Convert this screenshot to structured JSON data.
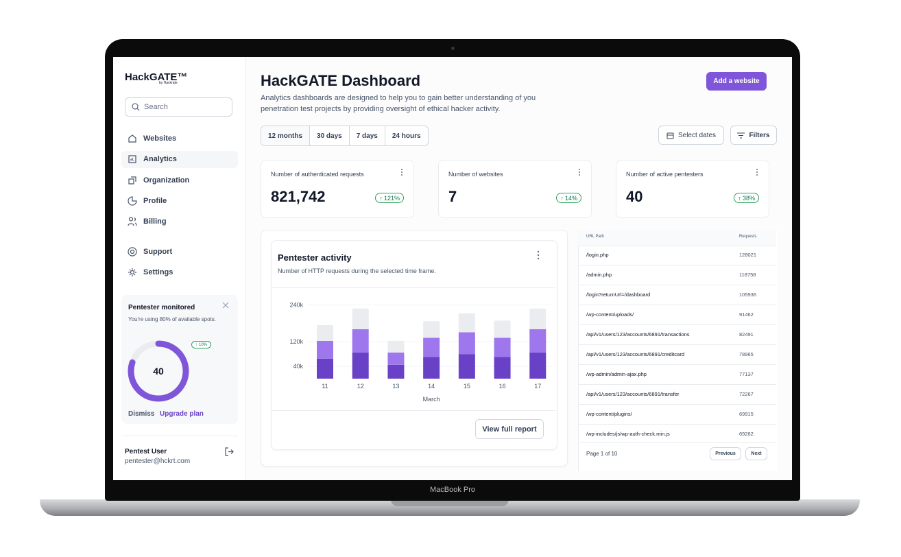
{
  "device_label": "MacBook Pro",
  "sidebar": {
    "brand": "HackGATE™",
    "brand_sub": "by Hackrate",
    "search_placeholder": "Search",
    "nav": [
      "Websites",
      "Analytics",
      "Organization",
      "Profile",
      "Billing"
    ],
    "nav2": [
      "Support",
      "Settings"
    ],
    "promo": {
      "title": "Pentester monitored",
      "text": "You're using 80% of available spots.",
      "badge": "10%",
      "gauge_value": 40,
      "gauge_percent": 80,
      "dismiss": "Dismiss",
      "upgrade": "Upgrade plan"
    },
    "user": {
      "name": "Pentest User",
      "email": "pentester@hckrt.com"
    }
  },
  "header": {
    "title": "HackGATE Dashboard",
    "description": "Analytics dashboards are designed to help you to gain better understanding of you penetration test projects by providing oversight of ethical hacker activity.",
    "add_button": "Add a website"
  },
  "filters": {
    "ranges": [
      "12 months",
      "30 days",
      "7 days",
      "24 hours"
    ],
    "select_dates": "Select dates",
    "filters": "Filters"
  },
  "stats": [
    {
      "label": "Number of authenticated requests",
      "value": "821,742",
      "change": "121%"
    },
    {
      "label": "Number of websites",
      "value": "7",
      "change": "14%"
    },
    {
      "label": "Number of active pentesters",
      "value": "40",
      "change": "38%"
    }
  ],
  "chart_data": {
    "type": "stacked_bar",
    "title": "Pentester activity",
    "subtitle": "Number of HTTP requests during the selected time frame.",
    "categories": [
      "11",
      "12",
      "13",
      "14",
      "15",
      "16",
      "17"
    ],
    "xlabel": "March",
    "series": [
      {
        "color": "#6941c6",
        "values": [
          65000,
          85000,
          45000,
          71000,
          80000,
          71000,
          85000
        ]
      },
      {
        "color": "#9e77ed",
        "values": [
          58000,
          76000,
          40000,
          62000,
          71000,
          62000,
          76000
        ]
      },
      {
        "color": "#eaecf0",
        "values": [
          51000,
          67000,
          38000,
          54000,
          62000,
          56000,
          67000
        ]
      }
    ],
    "ylim": [
      0,
      250000
    ],
    "yticks": [
      {
        "value": 240000,
        "label": "240k"
      },
      {
        "value": 120000,
        "label": "120k"
      },
      {
        "value": 40000,
        "label": "40k"
      }
    ],
    "grid": true
  },
  "activity_card": {
    "button": "View full report"
  },
  "table": {
    "columns": [
      "URL Path",
      "Requests"
    ],
    "rows": [
      [
        "/login.php",
        128021
      ],
      [
        "/admin.php",
        118758
      ],
      [
        "/login?returnUrl=/dashboard",
        105936
      ],
      [
        "/wp-content/uploads/",
        91462
      ],
      [
        "/api/v1/users/123/accounts/6891/transactions",
        82491
      ],
      [
        "/api/v1/users/123/accounts/6891/creditcard",
        78965
      ],
      [
        "/wp-admin/admin-ajax.php",
        77137
      ],
      [
        "/api/v1/users/123/accounts/6891/transfer",
        72267
      ],
      [
        "/wp-content/plugins/",
        69915
      ],
      [
        "/wp-includes/js/wp-auth-check.min.js",
        69262
      ]
    ],
    "pagination": "Page 1 of 10",
    "previous": "Previous",
    "next": "Next"
  }
}
